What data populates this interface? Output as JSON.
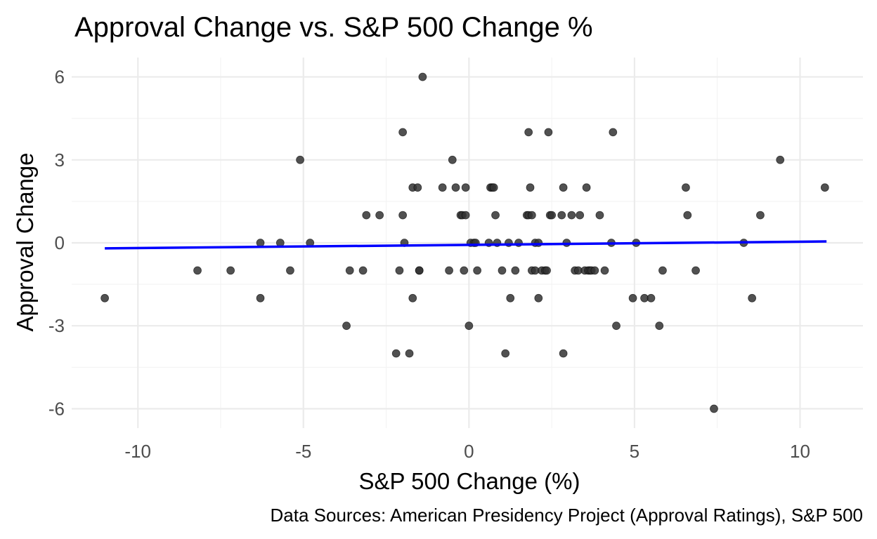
{
  "chart_data": {
    "type": "scatter",
    "title": "Approval Change vs. S&P 500 Change %",
    "xlabel": "S&P 500 Change (%)",
    "ylabel": "Approval Change",
    "caption": "Data Sources: American Presidency Project (Approval Ratings), S&P 500",
    "xlim": [
      -12.0,
      11.9
    ],
    "ylim": [
      -6.7,
      6.7
    ],
    "x_ticks": [
      -10,
      -5,
      0,
      5,
      10
    ],
    "x_tick_labels": [
      "-10",
      "-5",
      "0",
      "5",
      "10"
    ],
    "y_ticks": [
      6,
      3,
      0,
      -3,
      -6
    ],
    "y_tick_labels": [
      "6",
      "3",
      "0",
      "-3",
      "-6"
    ],
    "grid": true,
    "point_color": "#333333",
    "trend_color": "#0000ff",
    "trend_line": {
      "type": "linear",
      "x": [
        -11.0,
        10.8
      ],
      "y": [
        -0.2,
        0.05
      ]
    },
    "points": [
      {
        "x": -11.0,
        "y": -2
      },
      {
        "x": -8.2,
        "y": -1
      },
      {
        "x": -7.2,
        "y": -1
      },
      {
        "x": -6.3,
        "y": 0
      },
      {
        "x": -6.3,
        "y": -2
      },
      {
        "x": -5.7,
        "y": 0
      },
      {
        "x": -5.4,
        "y": -1
      },
      {
        "x": -5.1,
        "y": 3
      },
      {
        "x": -4.8,
        "y": 0
      },
      {
        "x": -3.7,
        "y": -3
      },
      {
        "x": -3.6,
        "y": -1
      },
      {
        "x": -3.2,
        "y": -1
      },
      {
        "x": -3.1,
        "y": 1
      },
      {
        "x": -2.7,
        "y": 1
      },
      {
        "x": -2.2,
        "y": -4
      },
      {
        "x": -2.1,
        "y": -1
      },
      {
        "x": -2.0,
        "y": 4
      },
      {
        "x": -2.0,
        "y": 1
      },
      {
        "x": -1.95,
        "y": 0
      },
      {
        "x": -1.8,
        "y": -4
      },
      {
        "x": -1.7,
        "y": 2
      },
      {
        "x": -1.7,
        "y": -2
      },
      {
        "x": -1.55,
        "y": 2
      },
      {
        "x": -1.5,
        "y": -1
      },
      {
        "x": -1.5,
        "y": -1
      },
      {
        "x": -1.4,
        "y": 6
      },
      {
        "x": -0.8,
        "y": 2
      },
      {
        "x": -0.6,
        "y": -1
      },
      {
        "x": -0.5,
        "y": 3
      },
      {
        "x": -0.4,
        "y": 2
      },
      {
        "x": -0.25,
        "y": 1
      },
      {
        "x": -0.2,
        "y": 1
      },
      {
        "x": -0.15,
        "y": -1
      },
      {
        "x": -0.1,
        "y": 2
      },
      {
        "x": -0.1,
        "y": 1
      },
      {
        "x": 0.0,
        "y": -3
      },
      {
        "x": 0.05,
        "y": 0
      },
      {
        "x": 0.15,
        "y": 0
      },
      {
        "x": 0.2,
        "y": 0
      },
      {
        "x": 0.25,
        "y": -1
      },
      {
        "x": 0.6,
        "y": 0
      },
      {
        "x": 0.65,
        "y": 2
      },
      {
        "x": 0.7,
        "y": 2
      },
      {
        "x": 0.75,
        "y": 2
      },
      {
        "x": 0.8,
        "y": 1
      },
      {
        "x": 0.85,
        "y": 0
      },
      {
        "x": 1.0,
        "y": -1
      },
      {
        "x": 1.1,
        "y": -4
      },
      {
        "x": 1.2,
        "y": 0
      },
      {
        "x": 1.25,
        "y": -2
      },
      {
        "x": 1.4,
        "y": -1
      },
      {
        "x": 1.5,
        "y": 0
      },
      {
        "x": 1.75,
        "y": 1
      },
      {
        "x": 1.8,
        "y": 4
      },
      {
        "x": 1.8,
        "y": 1
      },
      {
        "x": 1.85,
        "y": 2
      },
      {
        "x": 1.9,
        "y": 1
      },
      {
        "x": 1.9,
        "y": -1
      },
      {
        "x": 2.0,
        "y": -1
      },
      {
        "x": 2.0,
        "y": 0
      },
      {
        "x": 2.1,
        "y": 0
      },
      {
        "x": 2.1,
        "y": -2
      },
      {
        "x": 2.2,
        "y": -1
      },
      {
        "x": 2.3,
        "y": -1
      },
      {
        "x": 2.35,
        "y": -1
      },
      {
        "x": 2.4,
        "y": 4
      },
      {
        "x": 2.45,
        "y": 1
      },
      {
        "x": 2.5,
        "y": 1
      },
      {
        "x": 2.8,
        "y": 1
      },
      {
        "x": 2.85,
        "y": 2
      },
      {
        "x": 2.85,
        "y": -4
      },
      {
        "x": 2.95,
        "y": 0
      },
      {
        "x": 3.1,
        "y": 1
      },
      {
        "x": 3.2,
        "y": -1
      },
      {
        "x": 3.3,
        "y": -1
      },
      {
        "x": 3.35,
        "y": 1
      },
      {
        "x": 3.5,
        "y": -1
      },
      {
        "x": 3.55,
        "y": 2
      },
      {
        "x": 3.6,
        "y": -1
      },
      {
        "x": 3.65,
        "y": -1
      },
      {
        "x": 3.7,
        "y": -1
      },
      {
        "x": 3.8,
        "y": -1
      },
      {
        "x": 3.95,
        "y": 1
      },
      {
        "x": 4.1,
        "y": -1
      },
      {
        "x": 4.3,
        "y": 0
      },
      {
        "x": 4.35,
        "y": 4
      },
      {
        "x": 4.45,
        "y": -3
      },
      {
        "x": 4.95,
        "y": -2
      },
      {
        "x": 5.05,
        "y": 0
      },
      {
        "x": 5.3,
        "y": -2
      },
      {
        "x": 5.5,
        "y": -2
      },
      {
        "x": 5.75,
        "y": -3
      },
      {
        "x": 5.85,
        "y": -1
      },
      {
        "x": 6.55,
        "y": 2
      },
      {
        "x": 6.6,
        "y": 1
      },
      {
        "x": 6.85,
        "y": -1
      },
      {
        "x": 7.4,
        "y": -6
      },
      {
        "x": 8.3,
        "y": 0
      },
      {
        "x": 8.55,
        "y": -2
      },
      {
        "x": 8.8,
        "y": 1
      },
      {
        "x": 9.4,
        "y": 3
      },
      {
        "x": 10.75,
        "y": 2
      }
    ]
  }
}
